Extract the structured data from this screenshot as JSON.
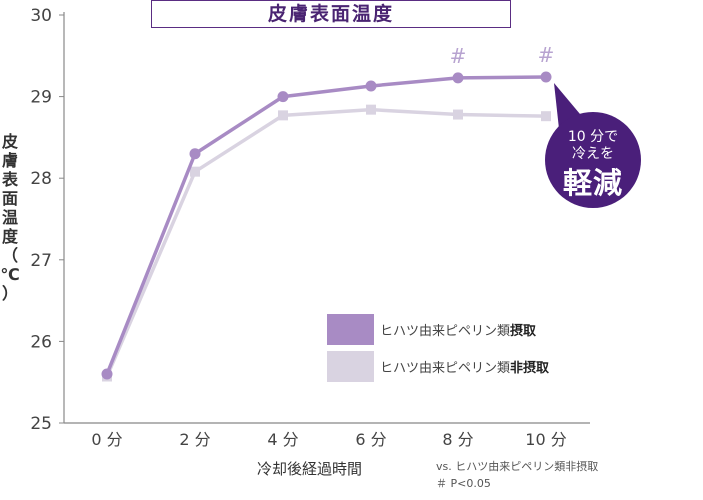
{
  "chart_data": {
    "type": "line",
    "title": "皮膚表面温度",
    "xlabel": "冷却後経過時間",
    "ylabel": "皮膚表面温度（℃）",
    "categories": [
      "0 分",
      "2 分",
      "4 分",
      "6 分",
      "8 分",
      "10 分"
    ],
    "x": [
      0,
      2,
      4,
      6,
      8,
      10
    ],
    "ylim": [
      25,
      30
    ],
    "yticks": [
      "25",
      "26",
      "27",
      "28",
      "29",
      "30"
    ],
    "grid": false,
    "legend_position": "bottom-right",
    "series": [
      {
        "name_prefix": "ヒハツ由来ピペリン類",
        "name_suffix": "摂取",
        "values": [
          25.6,
          28.3,
          29.0,
          29.13,
          29.23,
          29.24
        ],
        "color": "#a88bc4",
        "marker": "circle"
      },
      {
        "name_prefix": "ヒハツ由来ピペリン類",
        "name_suffix": "非摂取",
        "values": [
          25.57,
          28.08,
          28.77,
          28.84,
          28.78,
          28.76
        ],
        "color": "#d9d3e1",
        "marker": "square"
      }
    ],
    "significance_marks": [
      {
        "x": 8,
        "symbol": "#"
      },
      {
        "x": 10,
        "symbol": "#"
      }
    ]
  },
  "badge": {
    "line1": "10 分で",
    "line2": "冷えを",
    "line3": "軽減",
    "color": "#4a1f7a"
  },
  "footnote": {
    "line1": "vs. ヒハツ由来ピペリン類非摂取",
    "line2": "＃ P<0.05"
  }
}
